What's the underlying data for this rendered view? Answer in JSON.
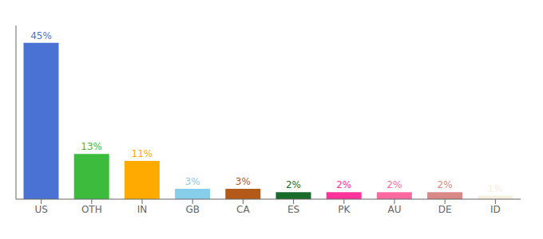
{
  "chart_data": {
    "type": "bar",
    "categories": [
      "US",
      "OTH",
      "IN",
      "GB",
      "CA",
      "ES",
      "PK",
      "AU",
      "DE",
      "ID"
    ],
    "values": [
      45,
      13,
      11,
      3,
      3,
      2,
      2,
      2,
      2,
      1
    ],
    "value_labels": [
      "45%",
      "13%",
      "11%",
      "3%",
      "3%",
      "2%",
      "2%",
      "2%",
      "2%",
      "1%"
    ],
    "colors": [
      "#4a72d4",
      "#3dbb3d",
      "#ffaa00",
      "#87ceeb",
      "#b35a1a",
      "#1a6b2a",
      "#ff3399",
      "#ff69a0",
      "#d98888",
      "#f5f0e0"
    ],
    "ylim": [
      0,
      50
    ],
    "data_labels": true,
    "tick_labels": "x",
    "grid": false
  }
}
